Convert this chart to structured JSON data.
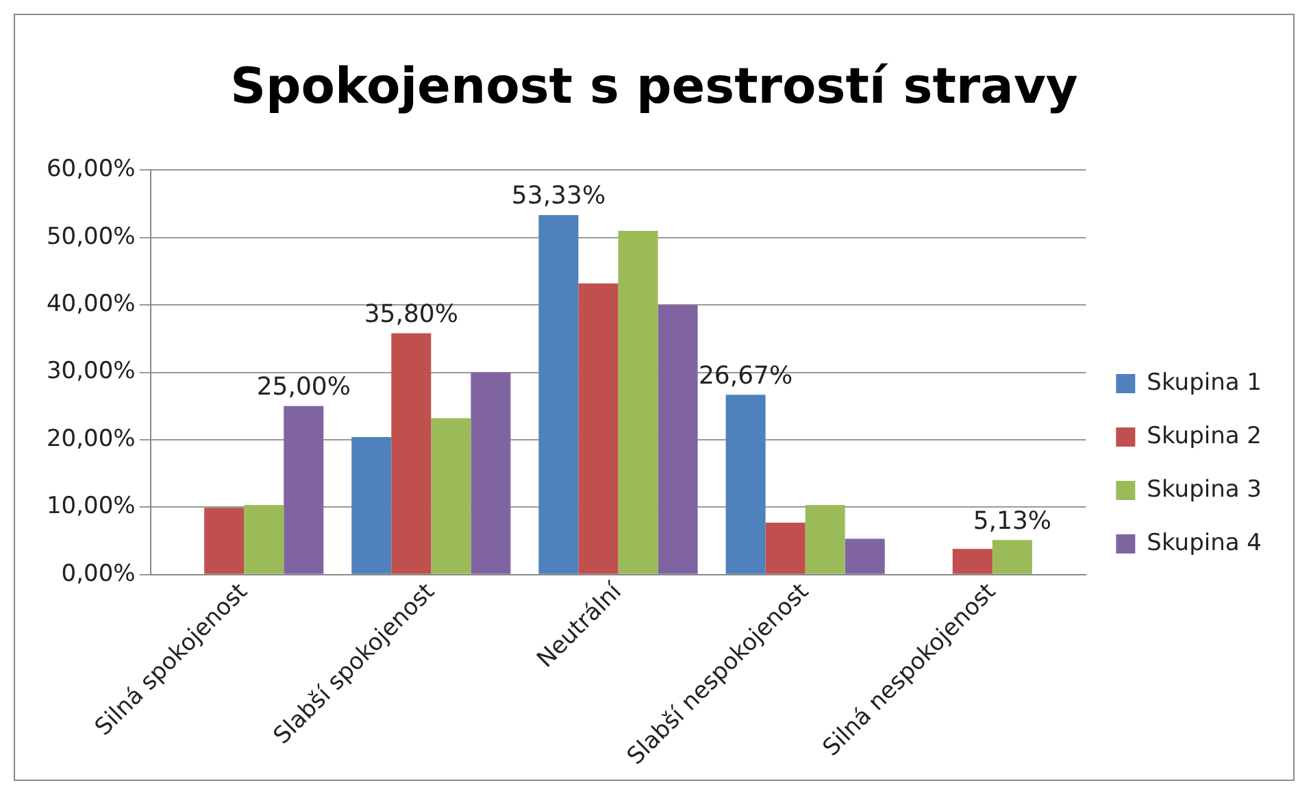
{
  "chart_data": {
    "type": "bar",
    "title": "Spokojenost s pestrostí stravy",
    "categories": [
      "Silná spokojenost",
      "Slabší spokojenost",
      "Neutrální",
      "Slabší nespokojenost",
      "Silná nespokojenost"
    ],
    "series": [
      {
        "name": "Skupina 1",
        "color": "#4f81bd",
        "values": [
          0,
          20.4,
          53.33,
          26.67,
          0
        ],
        "value_labels": [
          null,
          null,
          "53,33%",
          "26,67%",
          null
        ]
      },
      {
        "name": "Skupina 2",
        "color": "#c0504d",
        "values": [
          9.9,
          35.8,
          43.2,
          7.7,
          3.8
        ],
        "value_labels": [
          null,
          "35,80%",
          null,
          null,
          null
        ]
      },
      {
        "name": "Skupina 3",
        "color": "#9bbb59",
        "values": [
          10.3,
          23.2,
          51,
          10.3,
          5.13
        ],
        "value_labels": [
          null,
          null,
          null,
          null,
          "5,13%"
        ]
      },
      {
        "name": "Skupina 4",
        "color": "#8064a2",
        "values": [
          25,
          30,
          40,
          5.3,
          0
        ],
        "value_labels": [
          "25,00%",
          null,
          null,
          null,
          null
        ]
      }
    ],
    "ylim": [
      0,
      60
    ],
    "yticks": [
      {
        "value": 0,
        "label": "0,00%"
      },
      {
        "value": 10,
        "label": "10,00%"
      },
      {
        "value": 20,
        "label": "20,00%"
      },
      {
        "value": 30,
        "label": "30,00%"
      },
      {
        "value": 40,
        "label": "40,00%"
      },
      {
        "value": 50,
        "label": "50,00%"
      },
      {
        "value": 60,
        "label": "60,00%"
      }
    ],
    "grid": "y",
    "legend": "right"
  }
}
